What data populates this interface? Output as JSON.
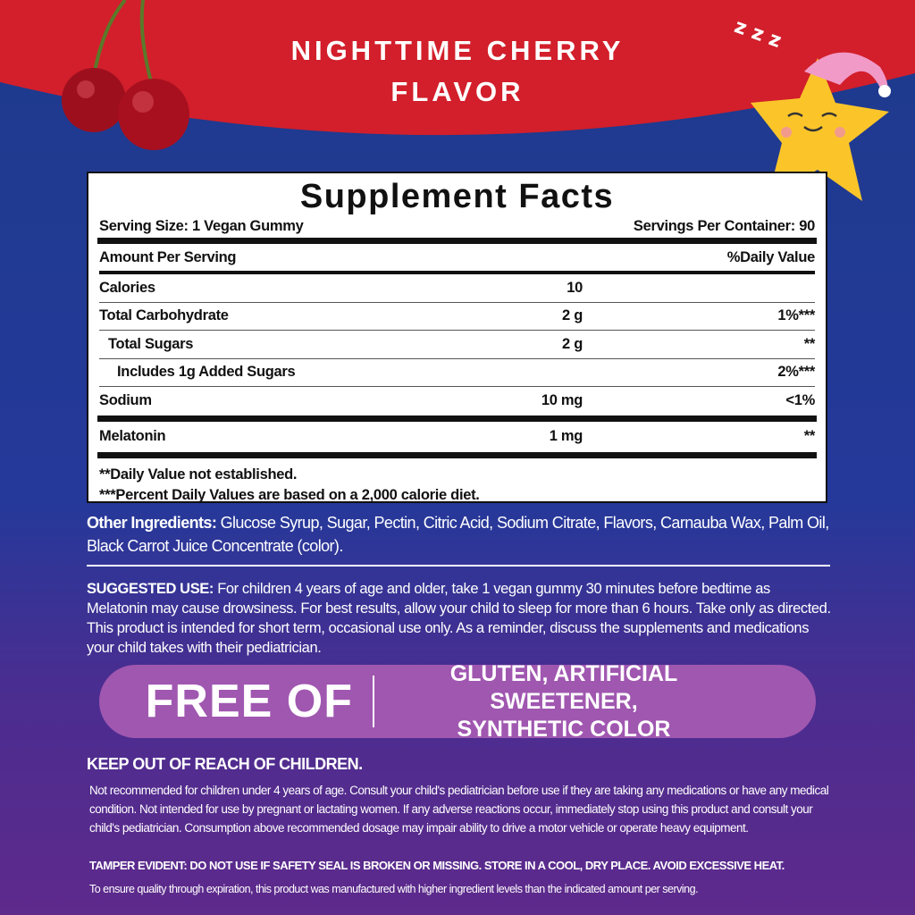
{
  "header": {
    "flavor_line1": "NIGHTTIME CHERRY",
    "flavor_line2": "FLAVOR"
  },
  "facts": {
    "title": "Supplement Facts",
    "serving_size": "Serving Size: 1 Vegan Gummy",
    "servings_per_container": "Servings Per Container: 90",
    "amount_header": "Amount Per Serving",
    "dv_header": "%Daily Value",
    "rows": [
      {
        "name": "Calories",
        "amount": "10",
        "dv": ""
      },
      {
        "name": "Total Carbohydrate",
        "amount": "2 g",
        "dv": "1%***"
      },
      {
        "name": "Total Sugars",
        "amount": "2 g",
        "dv": "**"
      },
      {
        "name": "Includes 1g Added Sugars",
        "amount": "",
        "dv": "2%***"
      },
      {
        "name": "Sodium",
        "amount": "10 mg",
        "dv": "<1%"
      },
      {
        "name": "Melatonin",
        "amount": "1 mg",
        "dv": "**"
      }
    ],
    "footnote1": "**Daily Value not established.",
    "footnote2": "***Percent Daily Values are based on a 2,000 calorie diet."
  },
  "other_ingredients": {
    "label": "Other Ingredients:",
    "text": " Glucose Syrup, Sugar, Pectin, Citric Acid, Sodium Citrate, Flavors, Carnauba Wax, Palm Oil, Black Carrot Juice Concentrate (color)."
  },
  "suggested_use": {
    "label": "SUGGESTED USE:",
    "text": " For children 4 years of age and older, take 1 vegan gummy 30 minutes before bedtime as Melatonin may cause drowsiness. For best results, allow your child to sleep for more than 6 hours. Take only as directed. This product is intended for short term, occasional use only. As a reminder, discuss the supplements and medications your child takes with their pediatrician."
  },
  "free_of": {
    "label": "FREE OF",
    "items_line1": "GLUTEN, ARTIFICIAL SWEETENER,",
    "items_line2": "SYNTHETIC COLOR"
  },
  "warnings": {
    "keep_out": "KEEP OUT OF REACH OF CHILDREN.",
    "body": "Not recommended for children under 4 years of age. Consult your child's pediatrician before use if they are taking any medications or have any medical condition. Not intended for use by pregnant or lactating women. If any adverse reactions occur, immediately stop using this product and consult your child's pediatrician. Consumption above recommended dosage may impair ability to drive a motor vehicle or operate heavy equipment.",
    "tamper": "TAMPER EVIDENT: DO NOT USE IF SAFETY SEAL IS BROKEN OR MISSING. STORE IN A COOL, DRY PLACE. AVOID EXCESSIVE HEAT.",
    "quality": "To ensure quality through expiration, this product was manufactured with higher ingredient levels than the indicated amount per serving."
  },
  "star_zzz": "z z z",
  "colors": {
    "red": "#d21f2b",
    "blue": "#1d3a8c",
    "purple": "#5e2a8c",
    "pill": "#a057b0",
    "star": "#fbc52a"
  }
}
